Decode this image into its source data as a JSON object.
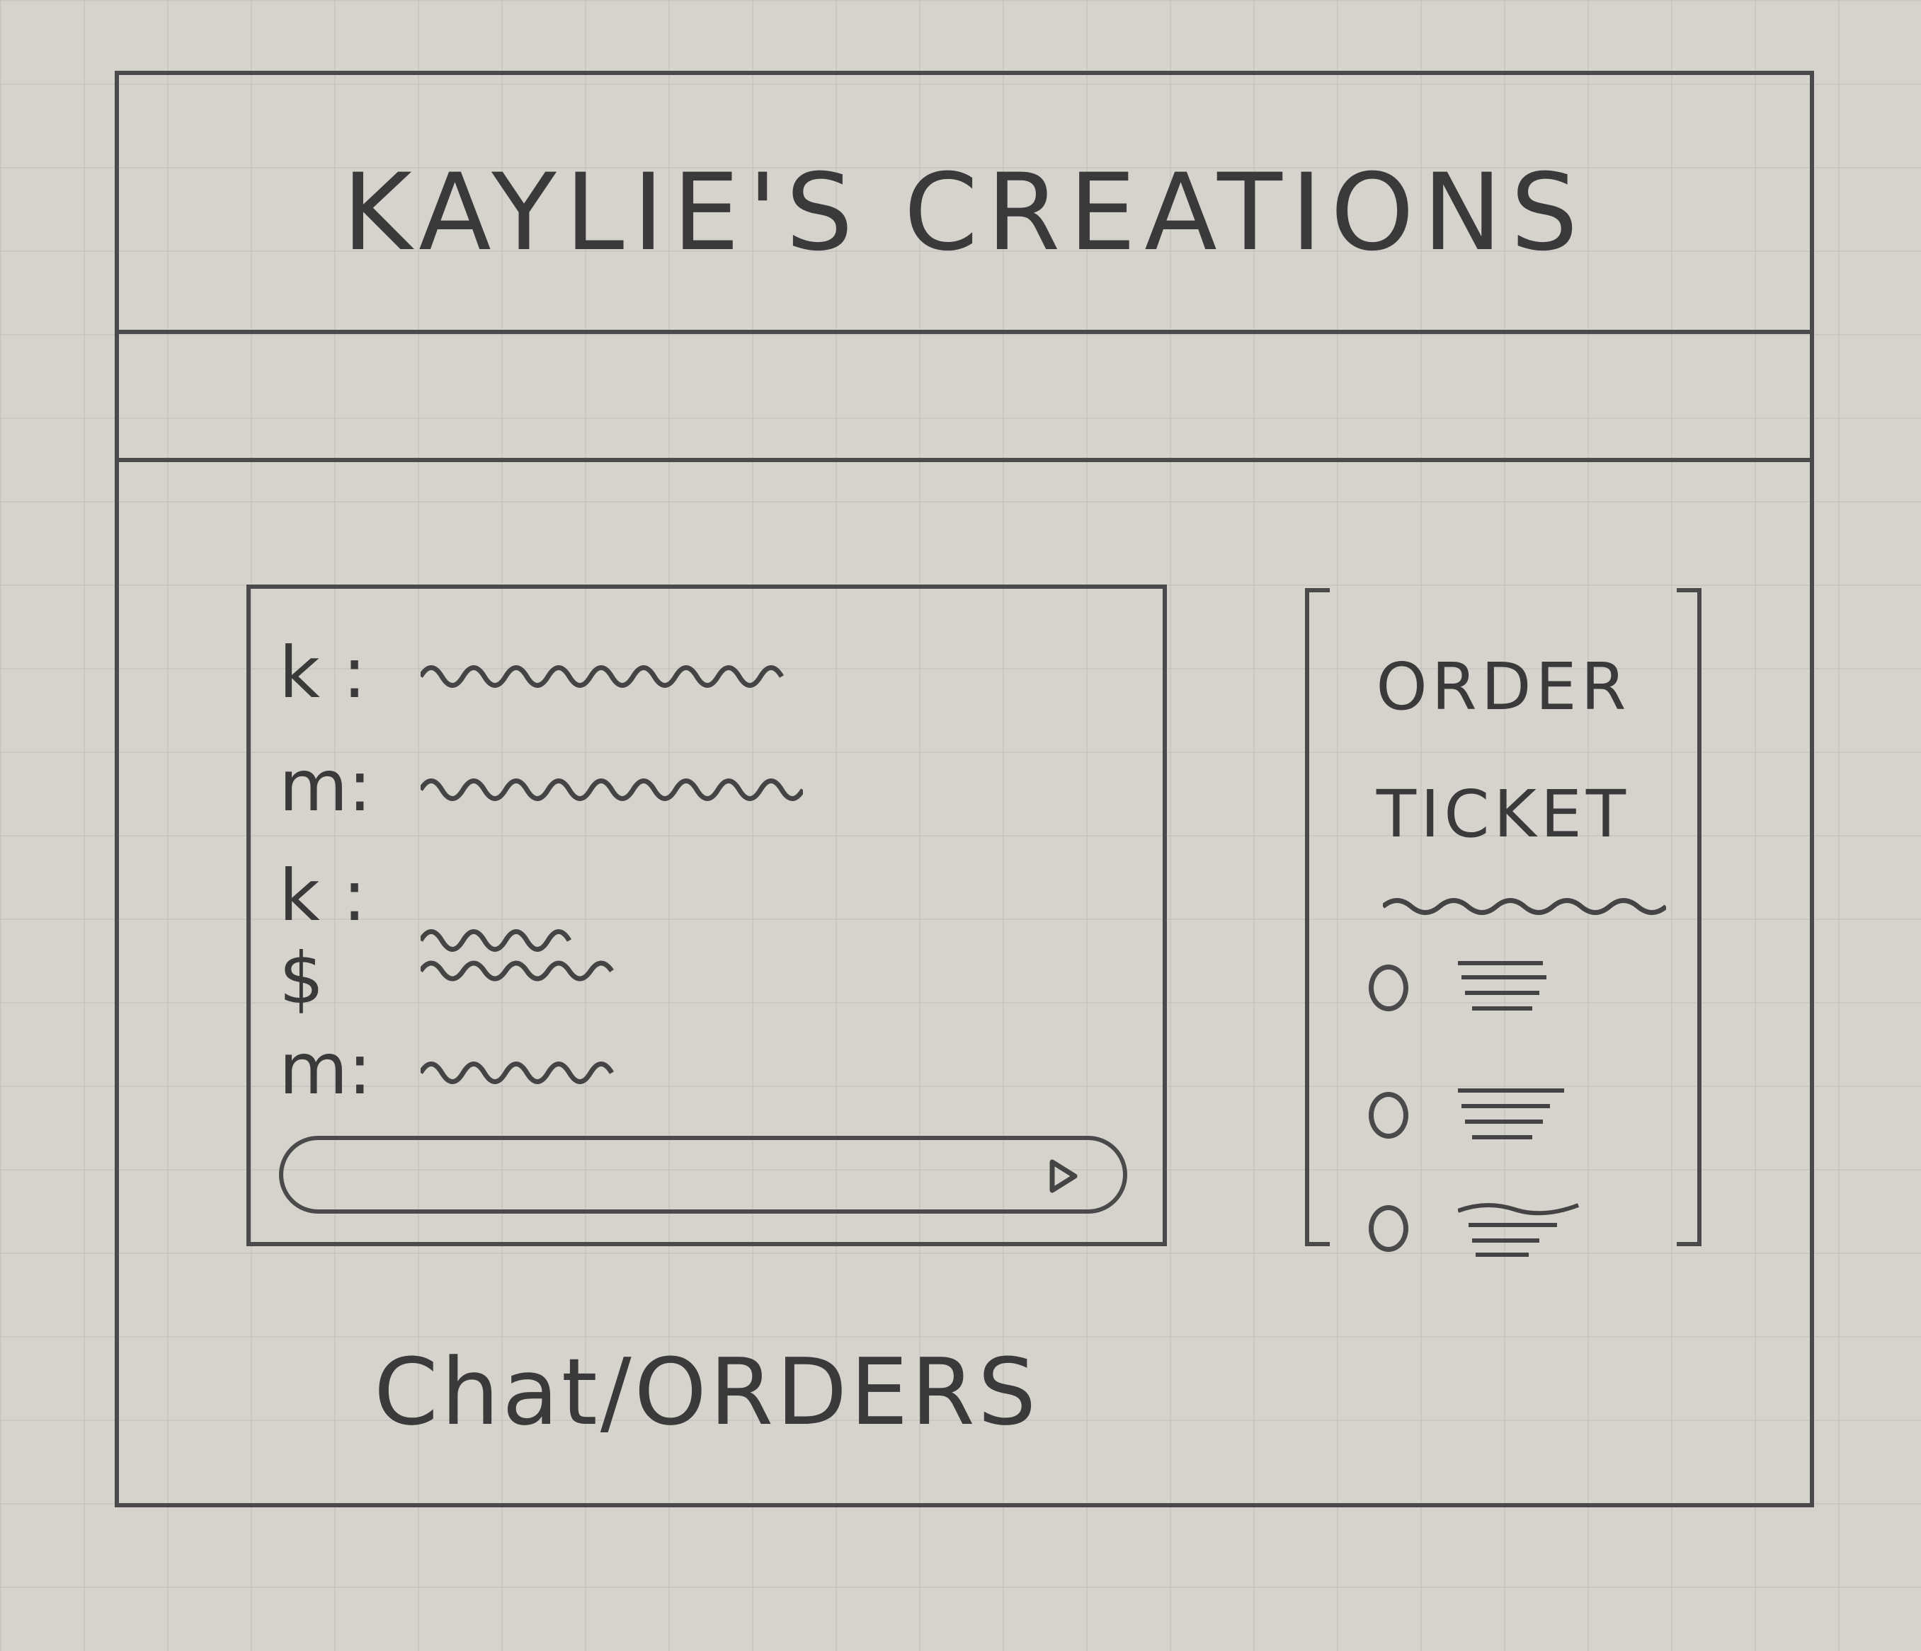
{
  "header": {
    "title": "KAYLIE'S CREATIONS"
  },
  "chat": {
    "messages": [
      {
        "sender": "k :"
      },
      {
        "sender": "m:"
      },
      {
        "sender": "k : $"
      },
      {
        "sender": ""
      },
      {
        "sender": "m:"
      }
    ]
  },
  "order_ticket": {
    "title": "ORDER\nTICKET",
    "items_count": 3
  },
  "page_label": "Chat/ORDERS"
}
